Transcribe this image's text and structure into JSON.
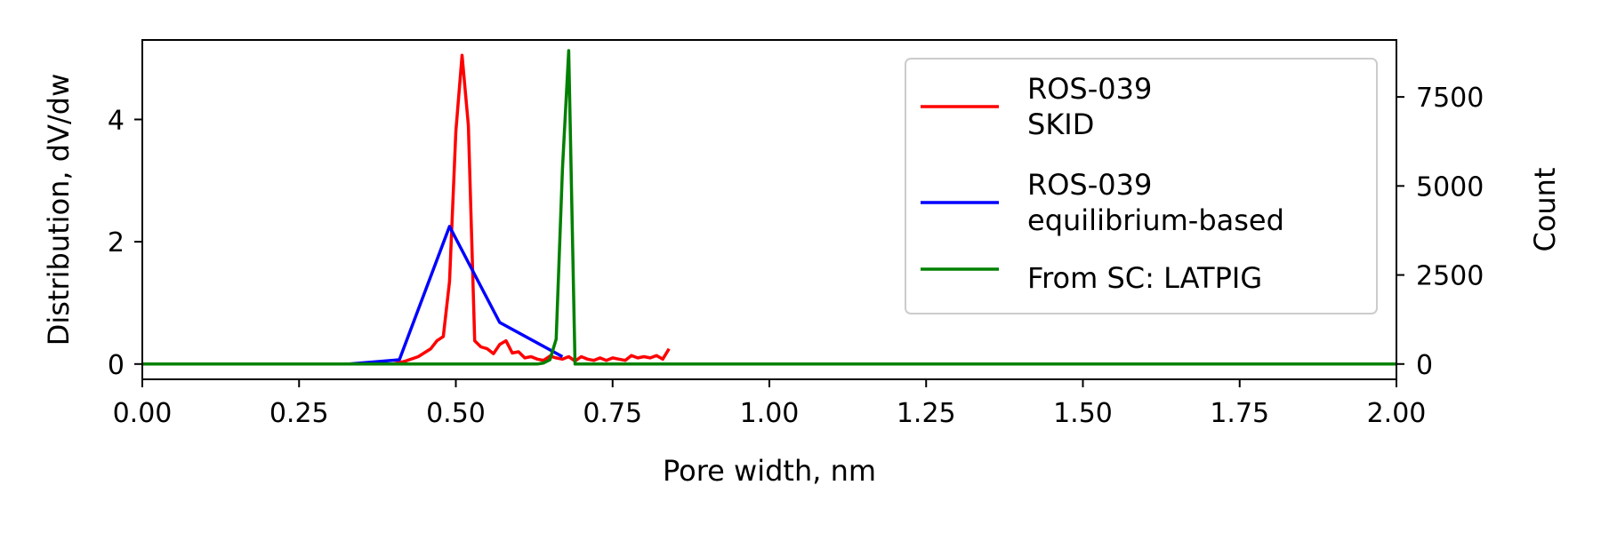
{
  "chart_data": {
    "type": "line",
    "title": "",
    "xlabel": "Pore width, nm",
    "ylabel": "Distribution, dV/dw",
    "ylabel_right": "Count",
    "xlim": [
      0,
      2
    ],
    "ylim": [
      -0.25,
      5.3
    ],
    "ylim_right": [
      -430,
      9100
    ],
    "xticks": [
      "0.00",
      "0.25",
      "0.50",
      "0.75",
      "1.00",
      "1.25",
      "1.50",
      "1.75",
      "2.00"
    ],
    "yticks": [
      "0",
      "2",
      "4"
    ],
    "yticks_right": [
      "0",
      "2500",
      "5000",
      "7500"
    ],
    "grid": false,
    "legend_position": "top-right",
    "right_axis_color": "#008000",
    "series": [
      {
        "name": "ROS-039\nSKID",
        "axis": "left",
        "color": "#ff0000",
        "x": [
          0.4,
          0.42,
          0.44,
          0.46,
          0.47,
          0.48,
          0.49,
          0.5,
          0.51,
          0.52,
          0.53,
          0.54,
          0.55,
          0.56,
          0.57,
          0.58,
          0.59,
          0.6,
          0.61,
          0.62,
          0.63,
          0.64,
          0.65,
          0.66,
          0.67,
          0.68,
          0.69,
          0.7,
          0.71,
          0.72,
          0.73,
          0.74,
          0.75,
          0.76,
          0.77,
          0.78,
          0.79,
          0.8,
          0.81,
          0.82,
          0.83,
          0.84
        ],
        "y": [
          0.0,
          0.05,
          0.12,
          0.25,
          0.38,
          0.45,
          1.35,
          3.8,
          5.05,
          3.9,
          0.38,
          0.28,
          0.25,
          0.17,
          0.32,
          0.38,
          0.18,
          0.2,
          0.1,
          0.12,
          0.08,
          0.06,
          0.13,
          0.1,
          0.08,
          0.12,
          0.05,
          0.12,
          0.08,
          0.06,
          0.1,
          0.06,
          0.1,
          0.08,
          0.06,
          0.14,
          0.1,
          0.12,
          0.1,
          0.14,
          0.08,
          0.25
        ]
      },
      {
        "name": "ROS-039\nequilibrium-based",
        "axis": "left",
        "color": "#0000ff",
        "x": [
          0.33,
          0.41,
          0.49,
          0.57,
          0.67
        ],
        "y": [
          0.0,
          0.07,
          2.25,
          0.68,
          0.12
        ]
      },
      {
        "name": "From SC: LATPIG",
        "axis": "right",
        "color": "#008000",
        "x": [
          0.0,
          0.63,
          0.64,
          0.65,
          0.66,
          0.67,
          0.68,
          0.69,
          0.7,
          2.0
        ],
        "y": [
          0,
          0,
          30,
          120,
          700,
          5500,
          8800,
          0,
          0,
          0
        ]
      }
    ]
  }
}
